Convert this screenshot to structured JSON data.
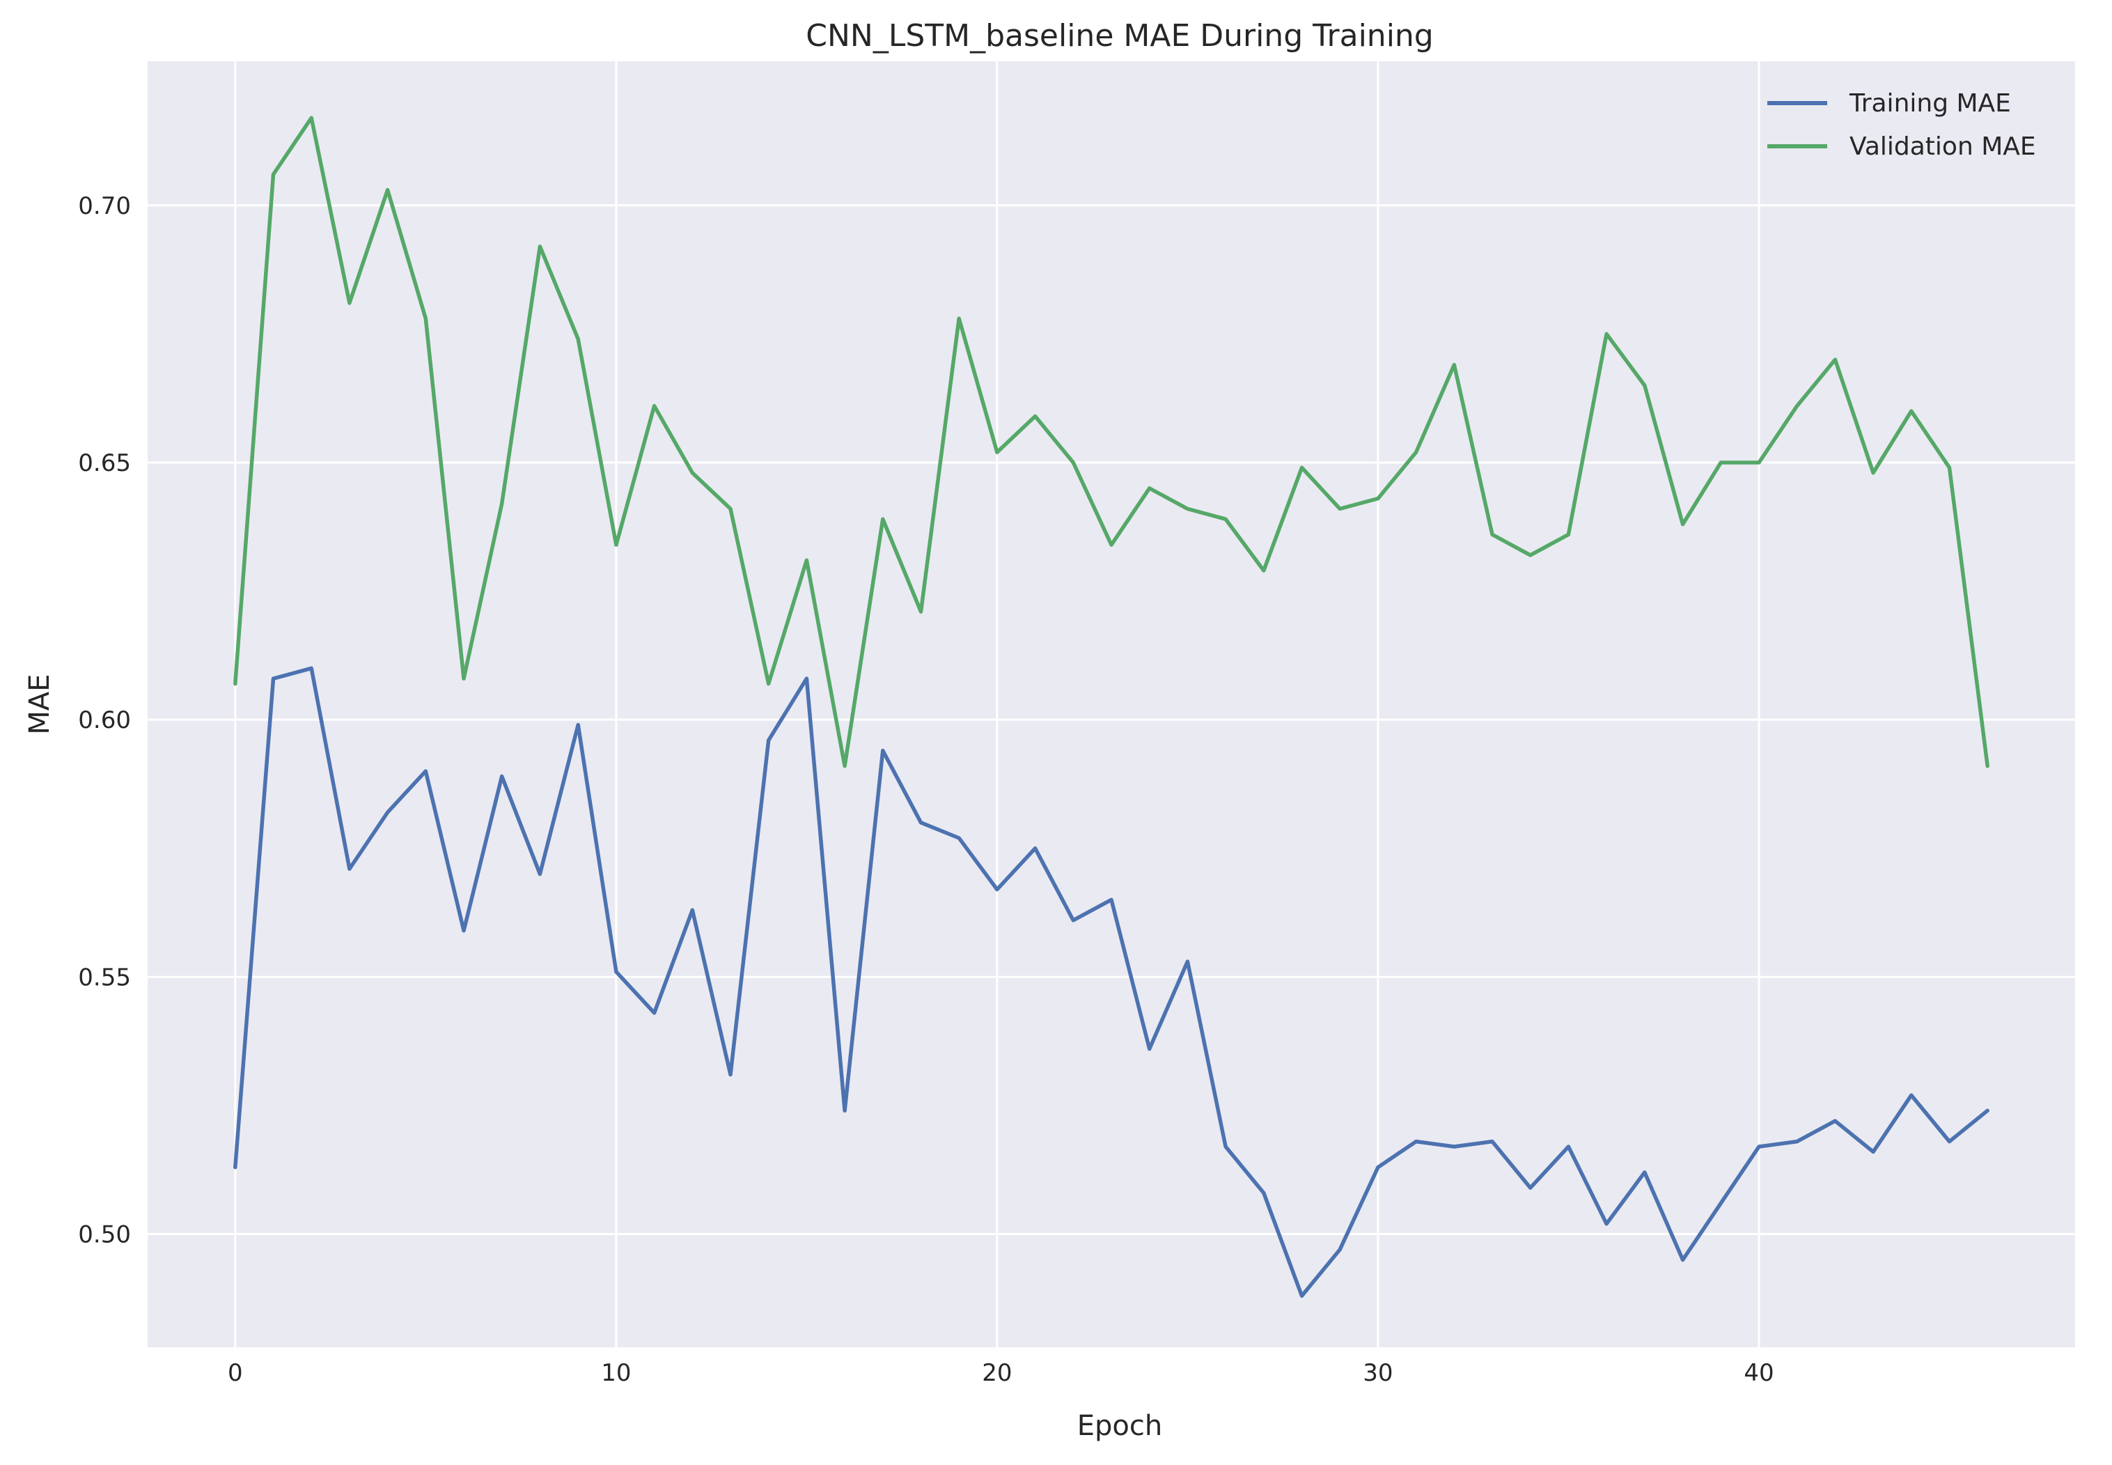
{
  "chart_data": {
    "type": "line",
    "title": "CNN_LSTM_baseline MAE During Training",
    "xlabel": "Epoch",
    "ylabel": "MAE",
    "xlim": [
      -2.3,
      48.3
    ],
    "ylim": [
      0.478,
      0.728
    ],
    "xticks": [
      0,
      10,
      20,
      30,
      40
    ],
    "yticks": [
      0.5,
      0.55,
      0.6,
      0.65,
      0.7
    ],
    "ytick_labels": [
      "0.50",
      "0.55",
      "0.60",
      "0.65",
      "0.70"
    ],
    "grid": true,
    "background": "#eaeaf2",
    "legend_position": "top-right",
    "x": [
      0,
      1,
      2,
      3,
      4,
      5,
      6,
      7,
      8,
      9,
      10,
      11,
      12,
      13,
      14,
      15,
      16,
      17,
      18,
      19,
      20,
      21,
      22,
      23,
      24,
      25,
      26,
      27,
      28,
      29,
      30,
      31,
      32,
      33,
      34,
      35,
      36,
      37,
      38,
      39,
      40,
      41,
      42,
      43,
      44,
      45,
      46
    ],
    "series": [
      {
        "name": "Training MAE",
        "color": "#4c72b0",
        "values": [
          0.513,
          0.608,
          0.61,
          0.571,
          0.582,
          0.59,
          0.559,
          0.589,
          0.57,
          0.599,
          0.551,
          0.543,
          0.563,
          0.531,
          0.596,
          0.608,
          0.524,
          0.594,
          0.58,
          0.577,
          0.567,
          0.575,
          0.561,
          0.565,
          0.536,
          0.553,
          0.517,
          0.508,
          0.488,
          0.497,
          0.513,
          0.518,
          0.517,
          0.518,
          0.509,
          0.517,
          0.502,
          0.512,
          0.495,
          0.506,
          0.517,
          0.518,
          0.522,
          0.516,
          0.527,
          0.518,
          0.524
        ]
      },
      {
        "name": "Validation MAE",
        "color": "#55a868",
        "values": [
          0.607,
          0.706,
          0.717,
          0.681,
          0.703,
          0.678,
          0.608,
          0.642,
          0.692,
          0.674,
          0.634,
          0.661,
          0.648,
          0.641,
          0.607,
          0.631,
          0.591,
          0.639,
          0.621,
          0.678,
          0.652,
          0.659,
          0.65,
          0.634,
          0.645,
          0.641,
          0.639,
          0.629,
          0.649,
          0.641,
          0.643,
          0.652,
          0.669,
          0.636,
          0.632,
          0.636,
          0.675,
          0.665,
          0.638,
          0.65,
          0.65,
          0.661,
          0.67,
          0.648,
          0.66,
          0.649,
          0.591
        ]
      }
    ]
  }
}
